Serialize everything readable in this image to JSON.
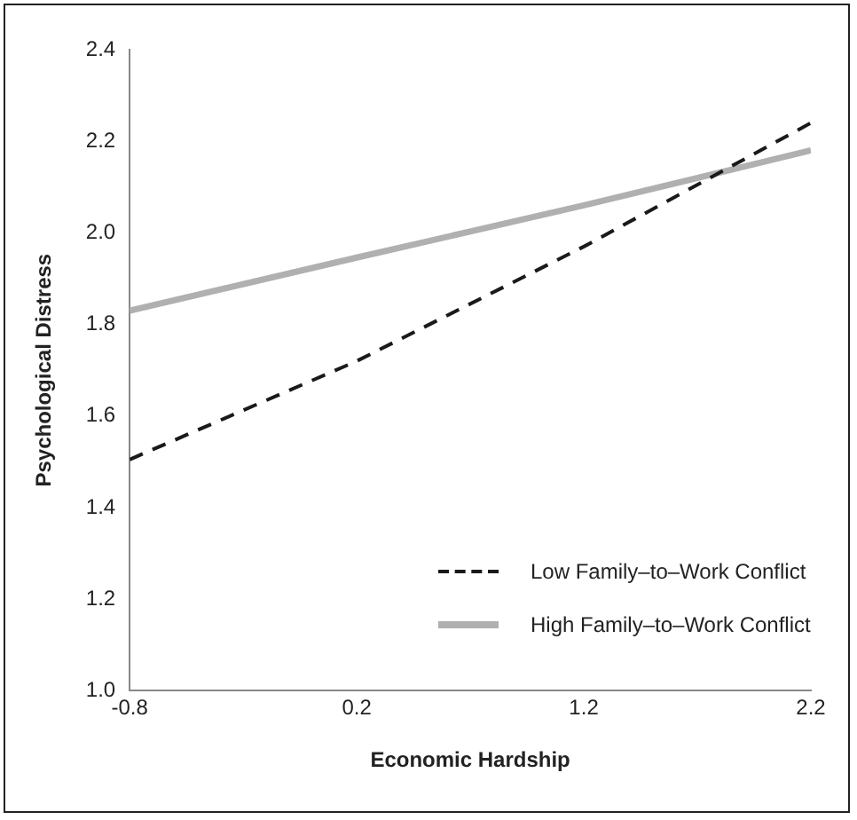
{
  "chart_data": {
    "type": "line",
    "xlabel": "Economic Hardship",
    "ylabel": "Psychological Distress",
    "x": [
      -0.8,
      0.2,
      1.2,
      2.2
    ],
    "series": [
      {
        "name": "Low Family–to–Work Conflict",
        "color": "#1a1a1a",
        "line_style": "dashed",
        "values": [
          1.505,
          1.72,
          1.97,
          2.24
        ]
      },
      {
        "name": "High Family–to–Work Conflict",
        "color": "#b0b0b0",
        "line_style": "solid",
        "values": [
          1.83,
          1.946,
          2.06,
          2.18
        ]
      }
    ],
    "xlim": [
      -0.8,
      2.2
    ],
    "xticks": [
      -0.8,
      0.2,
      1.2,
      2.2
    ],
    "ylim": [
      1.0,
      2.4
    ],
    "yticks": [
      {
        "value": 1.0,
        "label": "1.0"
      },
      {
        "value": 1.2,
        "label": "1.2"
      },
      {
        "value": 1.4,
        "label": "1.4"
      },
      {
        "value": 1.6,
        "label": "1.6"
      },
      {
        "value": 1.8,
        "label": "1.8"
      },
      {
        "value": 2.0,
        "label": "2.0"
      },
      {
        "value": 2.2,
        "label": "2.2"
      },
      {
        "value": 2.4,
        "label": "2.4"
      }
    ],
    "grid": false,
    "legend": "bottom right",
    "marker": "none"
  }
}
